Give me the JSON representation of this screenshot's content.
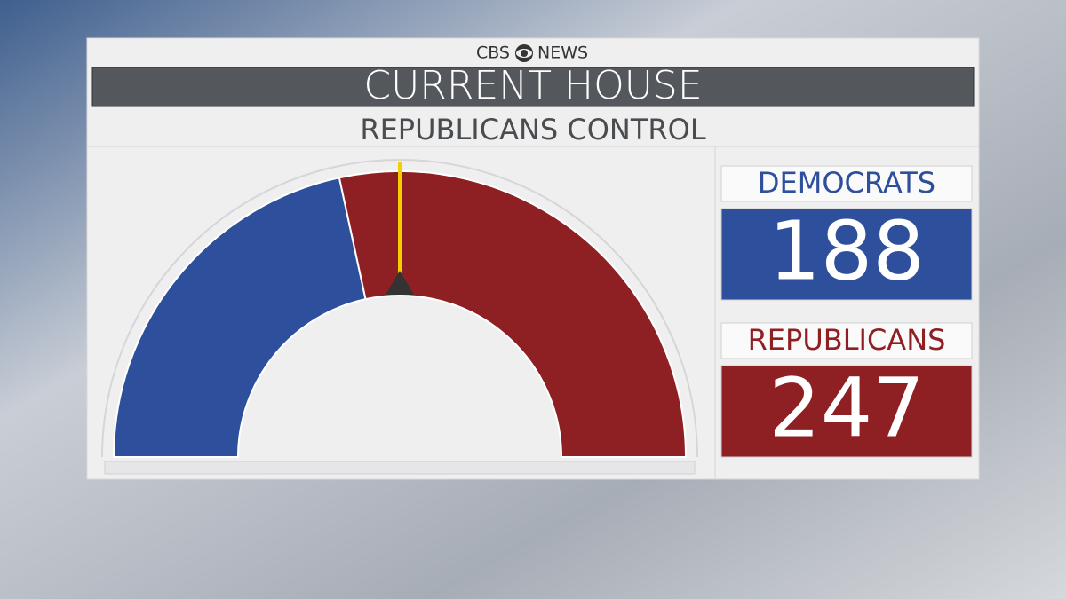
{
  "chart_data": {
    "type": "semicircle",
    "brand": [
      "CBS",
      "NEWS"
    ],
    "title": "CURRENT HOUSE",
    "subtitle": "REPUBLICANS CONTROL",
    "categories": [
      "DEMOCRATS",
      "REPUBLICANS"
    ],
    "values": [
      188,
      247
    ],
    "colors": [
      "#2d4f9c",
      "#8e1f22"
    ]
  }
}
